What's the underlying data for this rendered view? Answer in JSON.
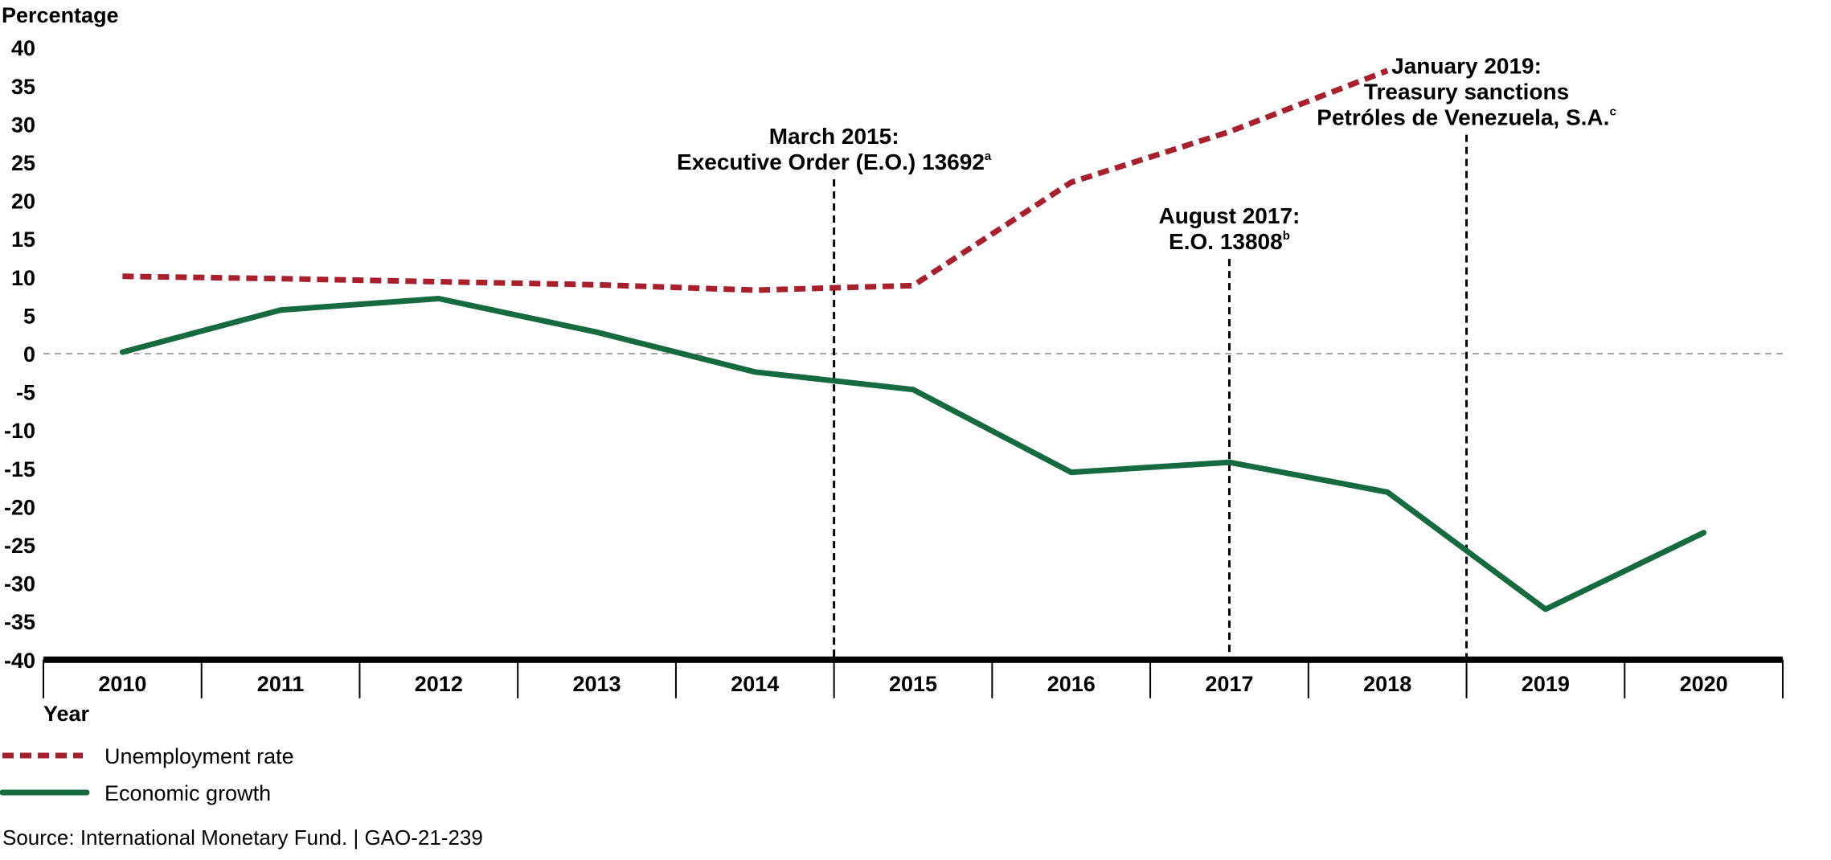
{
  "chart_data": {
    "type": "line",
    "ylabel": "Percentage",
    "xlabel": "Year",
    "ylim": [
      -40,
      40
    ],
    "yticks": [
      "40",
      "35",
      "30",
      "25",
      "20",
      "15",
      "10",
      "5",
      "0",
      "-5",
      "-10",
      "-15",
      "-20",
      "-25",
      "-30",
      "-35",
      "-40"
    ],
    "categories": [
      "2010",
      "2011",
      "2012",
      "2013",
      "2014",
      "2015",
      "2016",
      "2017",
      "2018",
      "2019",
      "2020"
    ],
    "series": [
      {
        "name": "Unemployment rate",
        "color": "#a8202e",
        "style": "dashed",
        "x": [
          2010,
          2011,
          2012,
          2013,
          2014,
          2015,
          2016,
          2017,
          2018
        ],
        "values": [
          10.1,
          9.8,
          9.4,
          9.0,
          8.3,
          8.9,
          22.4,
          29.0,
          37.0
        ]
      },
      {
        "name": "Economic growth",
        "color": "#156b3f",
        "style": "solid",
        "x": [
          2010,
          2011,
          2012,
          2013,
          2014,
          2015,
          2016,
          2017,
          2018,
          2019,
          2020
        ],
        "values": [
          0.2,
          5.7,
          7.2,
          2.8,
          -2.4,
          -4.7,
          -15.5,
          -14.2,
          -18.1,
          -33.4,
          -23.4
        ]
      }
    ],
    "zero_line": true,
    "legend_position": "bottom-left",
    "annotations": [
      {
        "id": "eo-13692",
        "x": 2015.0,
        "lines": [
          "March 2015:",
          "Executive Order (E.O.) 13692"
        ],
        "superscript": "a"
      },
      {
        "id": "eo-13808",
        "x": 2017.5,
        "lines": [
          "August 2017:",
          "E.O. 13808"
        ],
        "superscript": "b"
      },
      {
        "id": "pdvsa-sanctions",
        "x": 2019.0,
        "lines": [
          "January 2019:",
          "Treasury sanctions",
          "Petróles de Venezuela, S.A."
        ],
        "superscript": "c"
      }
    ]
  },
  "source": "Source: International Monetary Fund.  |  GAO-21-239"
}
